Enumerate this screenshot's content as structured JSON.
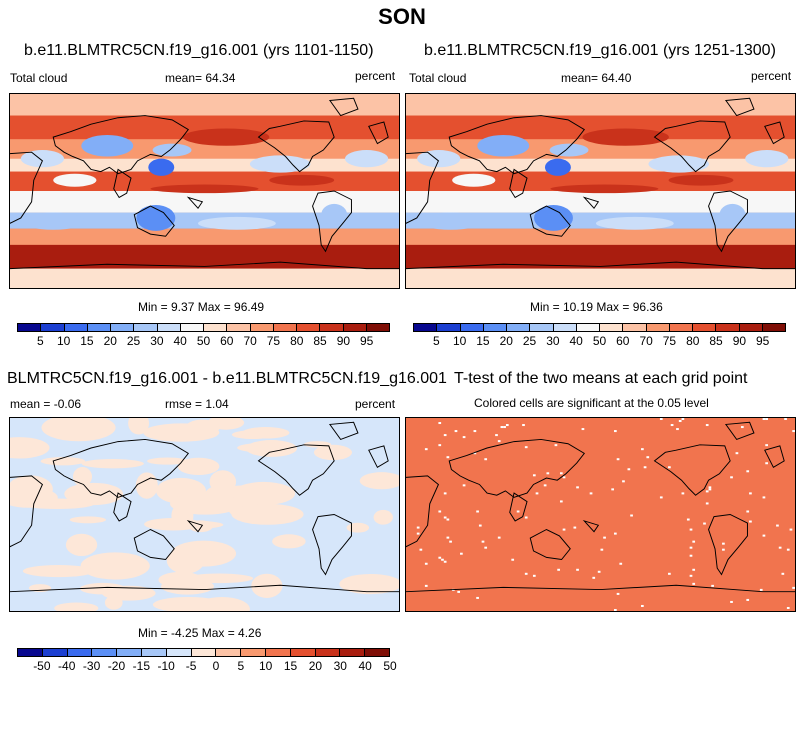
{
  "figure": {
    "title": "SON"
  },
  "colors": {
    "seq": [
      "#08088f",
      "#1c3fd1",
      "#3a6bef",
      "#5b8ff5",
      "#82aef7",
      "#a7c7f7",
      "#cbdef9",
      "#f7f7f7",
      "#fde2cf",
      "#fcc3a6",
      "#f8996f",
      "#f1744e",
      "#e4502f",
      "#c9321b",
      "#a91d0f",
      "#7f0e06"
    ],
    "diff": [
      "#08088f",
      "#1c3fd1",
      "#3a6bef",
      "#5b8ff5",
      "#82aef7",
      "#a7c7f7",
      "#d6e6fa",
      "#fde7d8",
      "#fcc3a6",
      "#f8996f",
      "#f1744e",
      "#e4502f",
      "#c9321b",
      "#a91d0f",
      "#7f0e06"
    ],
    "ttest": "#f1744e",
    "diff_blue": "#d6e6fa",
    "diff_peach": "#fde7d8"
  },
  "icons": {
    "maps": "world-coastline-map-icon"
  },
  "chart_data": [
    {
      "type": "heatmap",
      "title": "b.e11.BLMTRC5CN.f19_g16.001 (yrs 1101-1150)",
      "left_label": "Total cloud",
      "mean_label": "mean=  64.34",
      "units": "percent",
      "min_max": "Min =  9.37 Max =  96.49",
      "levels": [
        "5",
        "10",
        "15",
        "20",
        "25",
        "30",
        "40",
        "50",
        "60",
        "70",
        "75",
        "80",
        "85",
        "90",
        "95"
      ]
    },
    {
      "type": "heatmap",
      "title": "b.e11.BLMTRC5CN.f19_g16.001 (yrs 1251-1300)",
      "left_label": "Total cloud",
      "mean_label": "mean=  64.40",
      "units": "percent",
      "min_max": "Min =  10.19 Max =  96.36",
      "levels": [
        "5",
        "10",
        "15",
        "20",
        "25",
        "30",
        "40",
        "50",
        "60",
        "70",
        "75",
        "80",
        "85",
        "90",
        "95"
      ]
    },
    {
      "type": "heatmap",
      "title": "BLMTRC5CN.f19_g16.001 - b.e11.BLMTRC5CN.f19_g16.001",
      "left_label": "mean =  -0.06",
      "mean_label": "rmse =  1.04",
      "units": "percent",
      "min_max": "Min =  -4.25 Max =  4.26",
      "levels": [
        "-50",
        "-40",
        "-30",
        "-20",
        "-15",
        "-10",
        "-5",
        "0",
        "5",
        "10",
        "15",
        "20",
        "30",
        "40",
        "50"
      ]
    },
    {
      "type": "heatmap",
      "title": "T-test of the two means at each grid point",
      "subtitle": "Colored cells are significant at the 0.05 level"
    }
  ]
}
